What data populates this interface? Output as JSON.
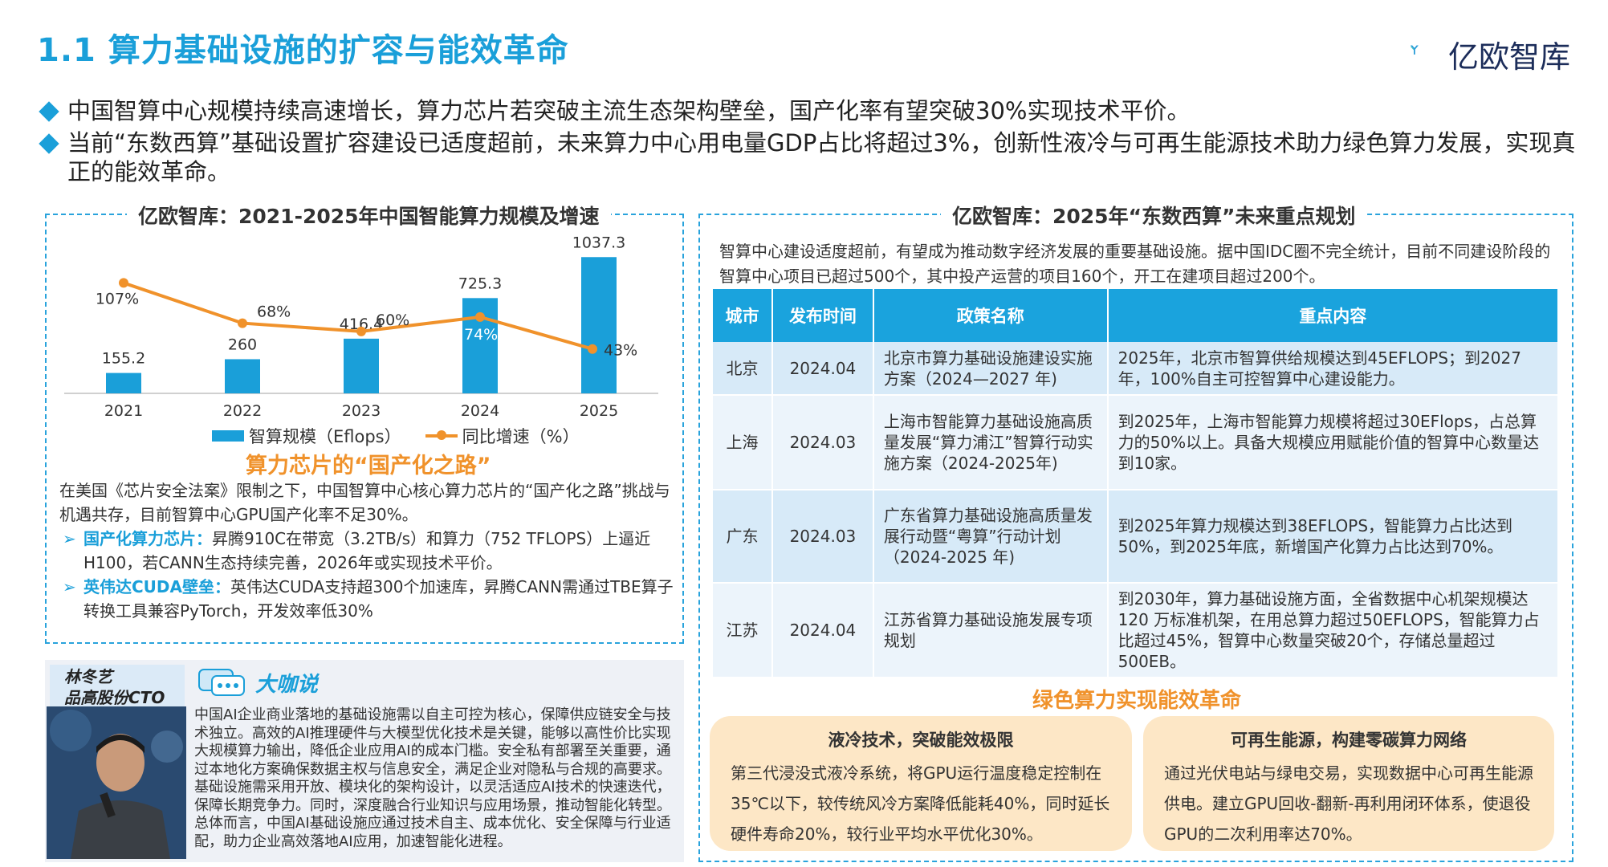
{
  "page": {
    "title": "1.1 算力基础设施的扩容与能效革命",
    "logo_text": "亿欧智库"
  },
  "bullets": [
    "中国智算中心规模持续高速增长，算力芯片若突破主流生态架构壁垒，国产化率有望突破30%实现技术平价。",
    "当前“东数西算”基础设置扩容建设已适度超前，未来算力中心用电量GDP占比将超过3%，创新性液冷与可再生能源技术助力绿色算力发展，实现真正的能效革命。"
  ],
  "left_panel": {
    "title": "亿欧智库：2021-2025年中国智能算力规模及增速",
    "subhead": "算力芯片的“国产化之路”",
    "paragraph": "在美国《芯片安全法案》限制之下，中国智算中心核心算力芯片的“国产化之路”挑战与机遇共存，目前智算中心GPU国产化率不足30%。",
    "items": [
      {
        "arrow": "➢",
        "highlight": "国产化算力芯片：",
        "text": "昇腾910C在带宽（3.2TB/s）和算力（752 TFLOPS）上逼近H100，若CANN生态持续完善，2026年或实现技术平价。"
      },
      {
        "arrow": "➢",
        "highlight": "英伟达CUDA壁垒：",
        "text": "英伟达CUDA支持超300个加速库，昇腾CANN需通过TBE算子转换工具兼容PyTorch，开发效率低30%"
      }
    ]
  },
  "chart_data": {
    "type": "bar",
    "categories": [
      "2021",
      "2022",
      "2023",
      "2024",
      "2025"
    ],
    "series": [
      {
        "name": "智算规模（Eflops）",
        "type": "bar",
        "values": [
          155.2,
          260,
          416.4,
          725.3,
          1037.3
        ],
        "labels": [
          "155.2",
          "260",
          "416.4",
          "725.3",
          "1037.3"
        ],
        "color": "#1a9fd9"
      },
      {
        "name": "同比增速（%）",
        "type": "line",
        "values": [
          107,
          68,
          60,
          74,
          43
        ],
        "labels": [
          "107%",
          "68%",
          "60%",
          "74%",
          "43%"
        ],
        "color": "#f0922b"
      }
    ],
    "bar_ylim": [
      0,
      1100
    ],
    "line_ylim": [
      0,
      140
    ],
    "legend": "bottom",
    "grid": false
  },
  "person": {
    "name": "林冬艺",
    "role": "品高股份CTO",
    "chat_label": "大咖说",
    "quote": "中国AI企业商业落地的基础设施需以自主可控为核心，保障供应链安全与技术独立。高效的AI推理硬件与大模型优化技术是关键，能够以高性价比实现大规模算力输出，降低企业应用AI的成本门槛。安全私有部署至关重要，通过本地化方案确保数据主权与信息安全，满足企业对隐私与合规的高要求。基础设施需采用开放、模块化的架构设计，以灵活适应AI技术的快速迭代，保障长期竞争力。同时，深度融合行业知识与应用场景，推动智能化转型。总体而言，中国AI基础设施应通过技术自主、成本优化、安全保障与行业适配，助力企业高效落地AI应用，加速智能化进程。"
  },
  "right_panel": {
    "title": "亿欧智库：2025年“东数西算”未来重点规划",
    "intro": "智算中心建设适度超前，有望成为推动数字经济发展的重要基础设施。据中国IDC圈不完全统计，目前不同建设阶段的智算中心项目已超过500个，其中投产运营的项目160个，开工在建项目超过200个。",
    "table": {
      "headers": [
        "城市",
        "发布时间",
        "政策名称",
        "重点内容"
      ],
      "rows": [
        {
          "city": "北京",
          "date": "2024.04",
          "policy": "北京市算力基础设施建设实施方案（2024—2027 年)",
          "content": "2025年，北京市智算供给规模达到45EFLOPS；到2027年，100%自主可控智算中心建设能力。"
        },
        {
          "city": "上海",
          "date": "2024.03",
          "policy": "上海市智能算力基础设施高质量发展“算力浦江”智算行动实施方案（2024-2025年)",
          "content": "到2025年，上海市智能算力规模将超过30EFlops，占总算力的50%以上。具备大规模应用赋能价值的智算中心数量达到10家。"
        },
        {
          "city": "广东",
          "date": "2024.03",
          "policy": "广东省算力基础设施高质量发展行动暨“粤算”行动计划（2024-2025 年)",
          "content": "到2025年算力规模达到38EFLOPS，智能算力占比达到50%，到2025年底，新增国产化算力占比达到70%。"
        },
        {
          "city": "江苏",
          "date": "2024.04",
          "policy": "江苏省算力基础设施发展专项规划",
          "content": "到2030年，算力基础设施方面，全省数据中心机架规模达120 万标准机架，在用总算力超过50EFLOPS，智能算力占比超过45%，智算中心数量突破20个，存储总量超过500EB。"
        }
      ]
    },
    "green_title": "绿色算力实现能效革命",
    "green_boxes": [
      {
        "title": "液冷技术，突破能效极限",
        "body": "第三代浸没式液冷系统，将GPU运行温度稳定控制在35℃以下，较传统风冷方案降低能耗40%，同时延长硬件寿命20%，较行业平均水平优化30%。"
      },
      {
        "title": "可再生能源，构建零碳算力网络",
        "body": "通过光伏电站与绿电交易，实现数据中心可再生能源供电。建立GPU回收-翻新-再利用闭环体系，使退役GPU的二次利用率达70%。"
      }
    ]
  },
  "colors": {
    "accent": "#1a9fd9",
    "orange": "#f0922b",
    "table_header": "#1aa3dd",
    "green_box": "#fde7c6"
  }
}
